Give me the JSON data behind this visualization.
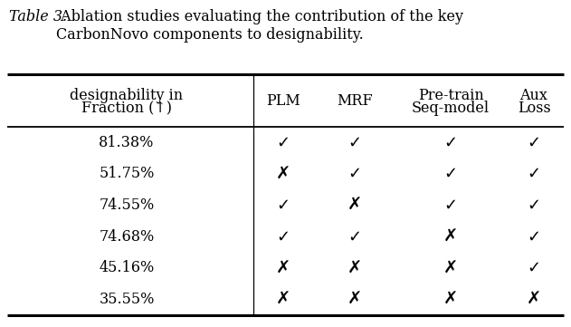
{
  "title_italic": "Table 3.",
  "title_normal": " Ablation studies evaluating the contribution of the key\nCarbonNovo components to designability.",
  "col_headers_line1": [
    "designability in",
    "PLM",
    "MRF",
    "Pre-train",
    "Aux"
  ],
  "col_headers_line2": [
    "Fraction (↑)",
    "",
    "",
    "Seq-model",
    "Loss"
  ],
  "rows": [
    {
      "value": "81.38%",
      "PLM": true,
      "MRF": true,
      "Pretrain": true,
      "Aux": true
    },
    {
      "value": "51.75%",
      "PLM": false,
      "MRF": true,
      "Pretrain": true,
      "Aux": true
    },
    {
      "value": "74.55%",
      "PLM": true,
      "MRF": false,
      "Pretrain": true,
      "Aux": true
    },
    {
      "value": "74.68%",
      "PLM": true,
      "MRF": true,
      "Pretrain": false,
      "Aux": true
    },
    {
      "value": "45.16%",
      "PLM": false,
      "MRF": false,
      "Pretrain": false,
      "Aux": true
    },
    {
      "value": "35.55%",
      "PLM": false,
      "MRF": false,
      "Pretrain": false,
      "Aux": false
    }
  ],
  "bg_color": "#ffffff",
  "text_color": "#000000",
  "title_fontsize": 11.5,
  "header_fontsize": 11.5,
  "cell_fontsize": 11.5,
  "check_fontsize": 13,
  "cross_fontsize": 14
}
